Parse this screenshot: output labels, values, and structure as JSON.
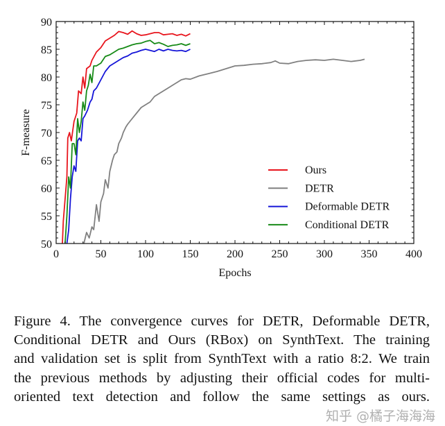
{
  "chart_data": {
    "type": "line",
    "title": "",
    "xlabel": "Epochs",
    "ylabel": "F-measure",
    "xlim": [
      0,
      400
    ],
    "ylim": [
      50,
      90
    ],
    "xticks": [
      0,
      50,
      100,
      150,
      200,
      250,
      300,
      350,
      400
    ],
    "yticks": [
      50,
      55,
      60,
      65,
      70,
      75,
      80,
      85,
      90
    ],
    "grid": false,
    "legend_position": "lower-right",
    "series": [
      {
        "name": "Ours",
        "color": "#e8141c",
        "x": [
          7,
          8,
          10,
          12,
          13,
          15,
          17,
          20,
          23,
          25,
          28,
          30,
          32,
          34,
          38,
          40,
          45,
          50,
          55,
          60,
          65,
          70,
          75,
          80,
          85,
          90,
          95,
          100,
          105,
          110,
          115,
          120,
          125,
          130,
          135,
          140,
          145,
          150
        ],
        "y": [
          50,
          54,
          58,
          62,
          69,
          70,
          68.5,
          72,
          73.5,
          77.5,
          77,
          80,
          78,
          81.5,
          82,
          83,
          84.5,
          85.3,
          86.5,
          87,
          87.5,
          88.2,
          88,
          87.7,
          88.3,
          87.8,
          87.5,
          87.6,
          87.8,
          88,
          88,
          87.6,
          87.7,
          87.8,
          87.5,
          87.7,
          87.4,
          87.8
        ]
      },
      {
        "name": "DETR",
        "color": "#808080",
        "x": [
          31,
          34,
          37,
          40,
          42,
          45,
          48,
          50,
          53,
          55,
          58,
          60,
          63,
          65,
          68,
          70,
          73,
          75,
          78,
          80,
          85,
          90,
          95,
          100,
          105,
          110,
          115,
          120,
          125,
          130,
          135,
          140,
          145,
          150,
          160,
          170,
          180,
          190,
          200,
          210,
          220,
          230,
          240,
          245,
          250,
          260,
          270,
          280,
          290,
          300,
          310,
          320,
          330,
          340,
          345
        ],
        "y": [
          50,
          52,
          51,
          53,
          52.5,
          57,
          54,
          57.5,
          59,
          61.5,
          60,
          63,
          65,
          66,
          66.5,
          68,
          69,
          70,
          71,
          71.5,
          72.5,
          73.5,
          74.5,
          75,
          75.5,
          76.5,
          77,
          77.5,
          78,
          78.5,
          79,
          79.5,
          79.7,
          79.6,
          80.2,
          80.6,
          81,
          81.5,
          82,
          82.1,
          82.3,
          82.4,
          82.6,
          82.9,
          82.5,
          82.4,
          82.8,
          83,
          83.1,
          83,
          83.2,
          83,
          82.8,
          83,
          83.2
        ]
      },
      {
        "name": "Deformable DETR",
        "color": "#1414d8",
        "x": [
          12,
          14,
          16,
          18,
          20,
          22,
          24,
          26,
          28,
          30,
          32,
          35,
          38,
          40,
          42,
          45,
          50,
          55,
          60,
          65,
          70,
          75,
          80,
          85,
          90,
          95,
          100,
          105,
          110,
          115,
          120,
          125,
          130,
          135,
          140,
          145,
          150
        ],
        "y": [
          50,
          52.5,
          58,
          62,
          64,
          63,
          68.5,
          69,
          68.5,
          72.5,
          73,
          74,
          75.5,
          76,
          77.5,
          78,
          79.5,
          81,
          82,
          82.5,
          83,
          83.5,
          83.8,
          84.3,
          84.5,
          84.8,
          85,
          84.8,
          84.6,
          85,
          84.7,
          85,
          84.8,
          84.7,
          84.8,
          84.6,
          85
        ]
      },
      {
        "name": "Conditional DETR",
        "color": "#168a16",
        "x": [
          10,
          12,
          14,
          16,
          18,
          20,
          22,
          24,
          26,
          28,
          30,
          32,
          34,
          36,
          38,
          40,
          42,
          45,
          50,
          55,
          60,
          65,
          70,
          75,
          80,
          85,
          90,
          95,
          100,
          105,
          110,
          115,
          120,
          125,
          130,
          135,
          140,
          145,
          150
        ],
        "y": [
          50,
          55,
          62,
          60,
          68,
          68,
          66,
          72.5,
          70,
          72,
          75.5,
          74,
          77.5,
          78.5,
          80.5,
          79,
          82,
          82,
          82.5,
          83.7,
          84,
          84.5,
          85,
          85.2,
          85.5,
          85.8,
          86,
          86.1,
          86.4,
          86.6,
          86,
          86.2,
          85.9,
          85.5,
          85.7,
          85.8,
          86,
          85.7,
          86
        ]
      }
    ]
  },
  "caption": {
    "lines": [
      "Figure 4. The convergence curves for DETR, Deformable DETR,",
      "Conditional DETR and Ours (RBox) on SynthText.  The training",
      "and validation set is split from SynthText with a ratio 8:2. We train",
      "the previous methods by adjusting their official codes for multi-",
      "oriented text detection and follow the same settings as ours."
    ]
  },
  "watermark": "知乎 @橘子海海海"
}
